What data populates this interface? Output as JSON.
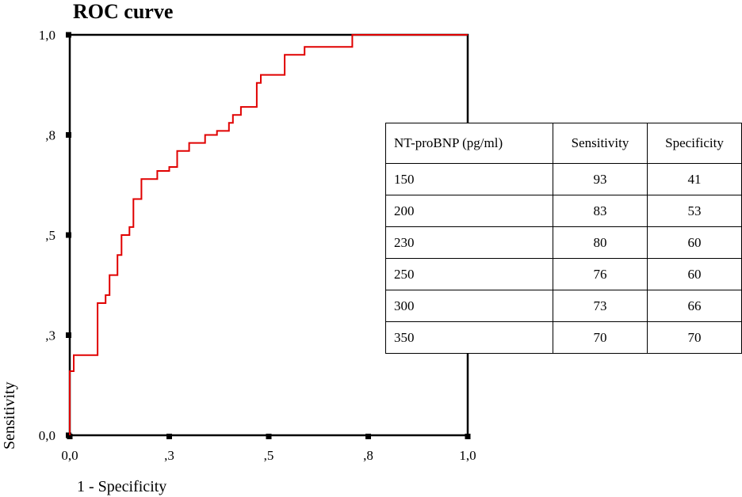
{
  "chart_data": {
    "type": "line",
    "title": "ROC curve",
    "xlabel": "1 - Specificity",
    "ylabel": "Sensitivity",
    "xlim": [
      0,
      1
    ],
    "ylim": [
      0,
      1
    ],
    "x_ticks": [
      0,
      0.25,
      0.5,
      0.75,
      1
    ],
    "x_tick_labels": [
      "0,0",
      ",3",
      ",5",
      ",8",
      "1,0"
    ],
    "y_ticks": [
      0,
      0.25,
      0.5,
      0.75,
      1
    ],
    "y_tick_labels": [
      "0,0",
      ",3",
      ",5",
      ",8",
      "1,0"
    ],
    "grid": false,
    "line_color": "#e00000",
    "series": [
      {
        "x": [
          0.0,
          0.0,
          0.01,
          0.01,
          0.07,
          0.07,
          0.09,
          0.09,
          0.1,
          0.1,
          0.12,
          0.12,
          0.13,
          0.13,
          0.15,
          0.15,
          0.16,
          0.16,
          0.18,
          0.18,
          0.22,
          0.22,
          0.25,
          0.25,
          0.27,
          0.27,
          0.3,
          0.3,
          0.34,
          0.34,
          0.37,
          0.37,
          0.4,
          0.4,
          0.41,
          0.41,
          0.43,
          0.43,
          0.47,
          0.47,
          0.48,
          0.48,
          0.54,
          0.54,
          0.59,
          0.59,
          0.71,
          0.71,
          0.81,
          0.81,
          1.0
        ],
        "y": [
          0.0,
          0.16,
          0.16,
          0.2,
          0.2,
          0.33,
          0.33,
          0.35,
          0.35,
          0.4,
          0.4,
          0.45,
          0.45,
          0.5,
          0.5,
          0.52,
          0.52,
          0.59,
          0.59,
          0.64,
          0.64,
          0.66,
          0.66,
          0.67,
          0.67,
          0.71,
          0.71,
          0.73,
          0.73,
          0.75,
          0.75,
          0.76,
          0.76,
          0.78,
          0.78,
          0.8,
          0.8,
          0.82,
          0.82,
          0.88,
          0.88,
          0.9,
          0.9,
          0.95,
          0.95,
          0.97,
          0.97,
          1.0,
          1.0,
          1.0,
          1.0
        ]
      }
    ]
  },
  "table": {
    "headers": [
      "NT-proBNP (pg/ml)",
      "Sensitivity",
      "Specificity"
    ],
    "rows": [
      [
        "150",
        "93",
        "41"
      ],
      [
        "200",
        "83",
        "53"
      ],
      [
        "230",
        "80",
        "60"
      ],
      [
        "250",
        "76",
        "60"
      ],
      [
        "300",
        "73",
        "66"
      ],
      [
        "350",
        "70",
        "70"
      ]
    ]
  }
}
